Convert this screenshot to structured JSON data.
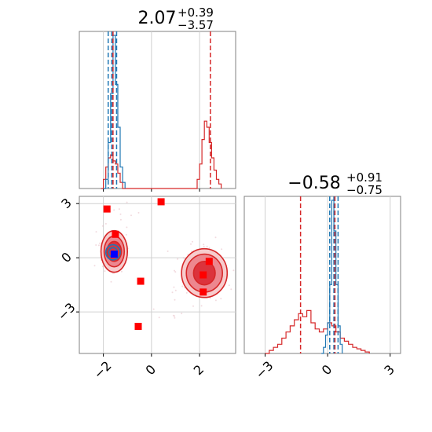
{
  "colors": {
    "red": "#d62728",
    "blue": "#1f77b4",
    "marker_red": "#ff0000",
    "marker_blue": "#0000ff"
  },
  "chart_data": [
    {
      "type": "histogram",
      "panel": "top-left",
      "title_main": "2.07",
      "title_sup": "+0.39",
      "title_sub": "−3.57",
      "xlim": [
        -3.0,
        3.5
      ],
      "blue_bins": [
        [
          -2.0,
          0.0
        ],
        [
          -1.9,
          0.06
        ],
        [
          -1.8,
          0.3
        ],
        [
          -1.7,
          0.62
        ],
        [
          -1.6,
          1.0
        ],
        [
          -1.5,
          0.68
        ],
        [
          -1.4,
          0.4
        ],
        [
          -1.3,
          0.14
        ],
        [
          -1.2,
          0.04
        ],
        [
          -1.1,
          0.0
        ]
      ],
      "red_bins": [
        [
          -2.1,
          0.0
        ],
        [
          -2.0,
          0.06
        ],
        [
          -1.9,
          0.14
        ],
        [
          -1.8,
          0.2
        ],
        [
          -1.7,
          0.22
        ],
        [
          -1.6,
          0.18
        ],
        [
          -1.5,
          0.16
        ],
        [
          -1.4,
          0.1
        ],
        [
          -1.3,
          0.04
        ],
        [
          -1.2,
          0.0
        ],
        [
          1.8,
          0.0
        ],
        [
          1.9,
          0.06
        ],
        [
          2.0,
          0.16
        ],
        [
          2.1,
          0.32
        ],
        [
          2.2,
          0.44
        ],
        [
          2.3,
          0.4
        ],
        [
          2.4,
          0.3
        ],
        [
          2.5,
          0.2
        ],
        [
          2.6,
          0.12
        ],
        [
          2.7,
          0.06
        ],
        [
          2.8,
          0.03
        ],
        [
          2.9,
          0.0
        ]
      ],
      "blue_quantile_lines": [
        -1.8,
        -1.65,
        -1.45
      ],
      "red_quantile_lines": [
        -1.6,
        2.45
      ]
    },
    {
      "type": "scatter",
      "panel": "bottom-left",
      "x_ticks": [
        -2,
        0,
        2
      ],
      "x_tick_labels": [
        "−2",
        "0",
        "2"
      ],
      "y_ticks": [
        3,
        0,
        -3
      ],
      "y_tick_labels": [
        "3",
        "0",
        "−3"
      ],
      "xlim": [
        -3.0,
        3.5
      ],
      "ylim": [
        -5.3,
        3.4
      ],
      "truth_lines": {
        "x": [
          -2,
          0,
          2
        ],
        "y": [
          3,
          0,
          -3
        ]
      },
      "red_points": [
        [
          -1.85,
          2.7
        ],
        [
          -1.5,
          1.3
        ],
        [
          0.4,
          3.1
        ],
        [
          -0.45,
          -1.3
        ],
        [
          2.4,
          -0.2
        ],
        [
          2.15,
          -0.95
        ],
        [
          2.15,
          -1.9
        ],
        [
          -0.55,
          -3.8
        ]
      ],
      "blue_points": [
        [
          -1.55,
          0.2
        ]
      ],
      "red_contours": [
        {
          "cx": -1.55,
          "cy": 0.35,
          "rx": 0.55,
          "ry": 1.15,
          "level": 1
        },
        {
          "cx": -1.55,
          "cy": 0.35,
          "rx": 0.42,
          "ry": 0.85,
          "level": 2
        },
        {
          "cx": -1.55,
          "cy": 0.35,
          "rx": 0.3,
          "ry": 0.55,
          "level": 3
        },
        {
          "cx": 2.2,
          "cy": -0.85,
          "rx": 0.95,
          "ry": 1.35,
          "level": 1
        },
        {
          "cx": 2.2,
          "cy": -0.85,
          "rx": 0.75,
          "ry": 1.05,
          "level": 2
        },
        {
          "cx": 2.2,
          "cy": -0.85,
          "rx": 0.45,
          "ry": 0.65,
          "level": 3
        }
      ],
      "blue_contours": [
        {
          "cx": -1.6,
          "cy": 0.3,
          "rx": 0.3,
          "ry": 0.42
        },
        {
          "cx": -1.6,
          "cy": 0.3,
          "rx": 0.18,
          "ry": 0.26
        }
      ]
    },
    {
      "type": "histogram",
      "panel": "bottom-right",
      "title_main": "−0.58",
      "title_sup": "+0.91",
      "title_sub": "−0.75",
      "x_ticks": [
        -3,
        0,
        3
      ],
      "x_tick_labels": [
        "−3",
        "0",
        "3"
      ],
      "xlim": [
        -4.0,
        3.5
      ],
      "blue_bins": [
        [
          -0.3,
          0.0
        ],
        [
          -0.2,
          0.04
        ],
        [
          -0.1,
          0.12
        ],
        [
          0.0,
          0.2
        ],
        [
          0.1,
          0.45
        ],
        [
          0.2,
          1.0
        ],
        [
          0.3,
          0.8
        ],
        [
          0.4,
          0.45
        ],
        [
          0.5,
          0.18
        ],
        [
          0.6,
          0.06
        ],
        [
          0.7,
          0.0
        ]
      ],
      "red_bins": [
        [
          -3.0,
          0.0
        ],
        [
          -2.8,
          0.02
        ],
        [
          -2.6,
          0.04
        ],
        [
          -2.4,
          0.06
        ],
        [
          -2.2,
          0.1
        ],
        [
          -2.0,
          0.14
        ],
        [
          -1.8,
          0.18
        ],
        [
          -1.6,
          0.22
        ],
        [
          -1.4,
          0.26
        ],
        [
          -1.2,
          0.24
        ],
        [
          -1.0,
          0.28
        ],
        [
          -0.8,
          0.2
        ],
        [
          -0.6,
          0.16
        ],
        [
          -0.4,
          0.14
        ],
        [
          -0.2,
          0.16
        ],
        [
          0.0,
          0.2
        ],
        [
          0.2,
          0.18
        ],
        [
          0.4,
          0.14
        ],
        [
          0.6,
          0.1
        ],
        [
          0.8,
          0.08
        ],
        [
          1.0,
          0.06
        ],
        [
          1.2,
          0.04
        ],
        [
          1.4,
          0.03
        ],
        [
          1.6,
          0.02
        ],
        [
          1.8,
          0.01
        ],
        [
          2.0,
          0.0
        ]
      ],
      "blue_quantile_lines": [
        0.1,
        0.3,
        0.5
      ],
      "red_quantile_lines": [
        -1.3,
        0.35
      ]
    }
  ]
}
